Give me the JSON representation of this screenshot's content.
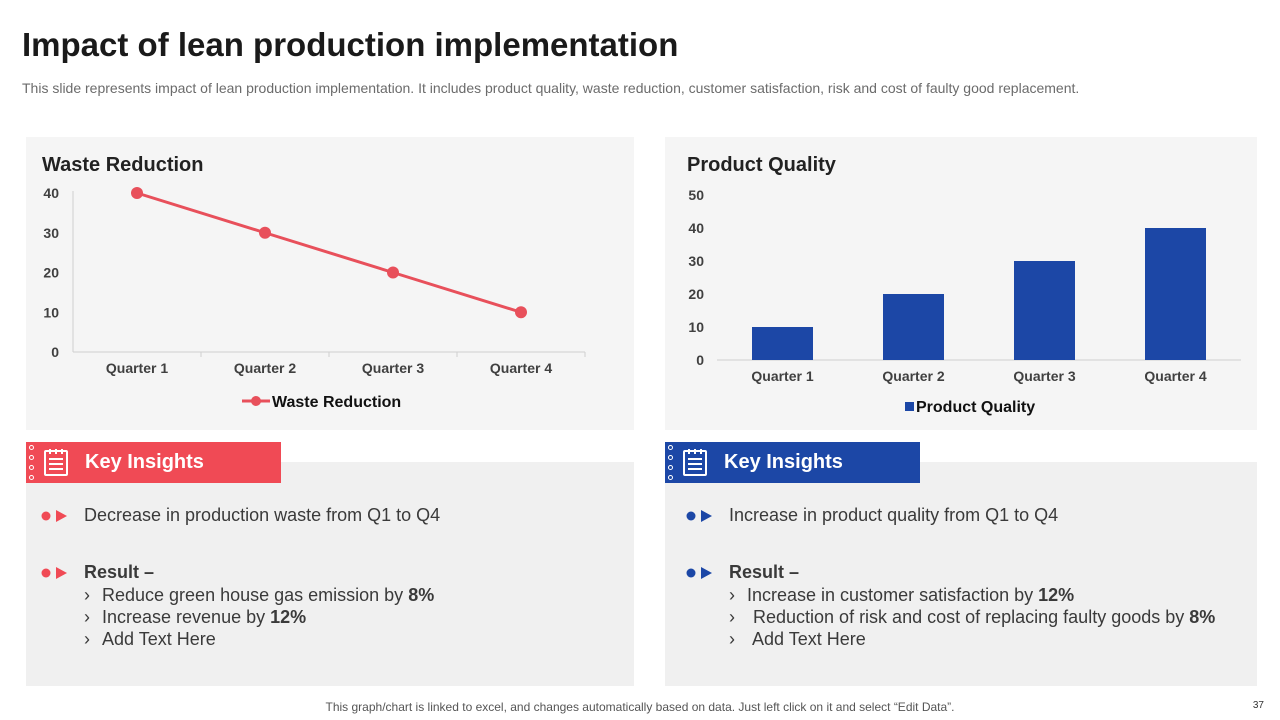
{
  "page": {
    "title": "Impact of lean production implementation",
    "subtitle": "This slide represents impact of lean production implementation. It includes product quality,  waste reduction, customer satisfaction, risk and cost of faulty good replacement.",
    "footer": "This graph/chart is linked to excel, and changes automatically based on data. Just left click on it and select “Edit Data”.",
    "page_number": "37"
  },
  "colors": {
    "red": "#f04a55",
    "blue": "#1c47a6",
    "text": "#3a3a3a"
  },
  "chart_data": [
    {
      "type": "line",
      "title": "Waste Reduction",
      "categories": [
        "Quarter 1",
        "Quarter 2",
        "Quarter 3",
        "Quarter 4"
      ],
      "series": [
        {
          "name": "Waste Reduction",
          "values": [
            40,
            30,
            20,
            10
          ],
          "color": "#e8505b"
        }
      ],
      "yticks": [
        0,
        10,
        20,
        30,
        40
      ],
      "ylim": [
        0,
        40
      ],
      "legend": "bottom"
    },
    {
      "type": "bar",
      "title": "Product Quality",
      "categories": [
        "Quarter 1",
        "Quarter 2",
        "Quarter 3",
        "Quarter 4"
      ],
      "series": [
        {
          "name": "Product Quality",
          "values": [
            10,
            20,
            30,
            40
          ],
          "color": "#1c47a6"
        }
      ],
      "yticks": [
        0,
        10,
        20,
        30,
        40,
        50
      ],
      "ylim": [
        0,
        50
      ],
      "legend": "bottom"
    }
  ],
  "insights_left": {
    "heading": "Key Insights",
    "point": "Decrease in production waste from Q1 to Q4",
    "result_label": "Result –",
    "items": [
      {
        "text": "Reduce green house gas emission by ",
        "value": "8%"
      },
      {
        "text": "Increase revenue by ",
        "value": "12%"
      },
      {
        "text": "Add Text Here",
        "value": ""
      }
    ]
  },
  "insights_right": {
    "heading": "Key Insights",
    "point": "Increase in product quality from Q1 to Q4",
    "result_label": "Result –",
    "items": [
      {
        "text": "Increase in customer satisfaction by ",
        "value": "12%"
      },
      {
        "text": "Reduction of risk and cost of replacing faulty goods by ",
        "value": "8%"
      },
      {
        "text": "Add Text Here",
        "value": ""
      }
    ]
  },
  "sub_marker": "›"
}
